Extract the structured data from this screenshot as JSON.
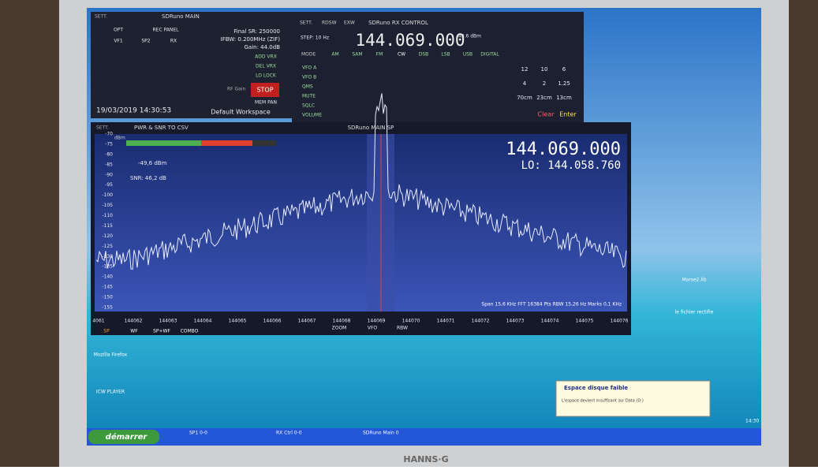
{
  "main_window": {
    "title": "SDRuno MAIN",
    "sett": "SETT.",
    "buttons_top": [
      "OPT",
      "REC PANEL",
      "VF1",
      "SP2",
      "RX"
    ],
    "final_sr": "Final SR: 250000",
    "ifbw": "IFBW: 0.200MHz (ZIF)",
    "gain": "Gain: 44.0dB",
    "vrx": [
      "ADD VRX",
      "DEL VRX",
      "LO LOCK"
    ],
    "stop": "STOP",
    "mem_pan": "MEM PAN",
    "rf_gain": "RF Gain",
    "date": "19/03/2019 14:30:53",
    "workspace": "Default Workspace"
  },
  "rx_control": {
    "title": "SDRuno RX CONTROL",
    "tabs": [
      "SETT.",
      "RDSW",
      "EXW"
    ],
    "step": "STEP: 10 Hz",
    "frequency": "144.069.000",
    "level": "-49.6 dBm",
    "mode_label": "MODE",
    "modes": [
      "AM",
      "SAM",
      "FM",
      "CW",
      "DSB",
      "LSB",
      "USB",
      "DIGITAL"
    ],
    "left_buttons": [
      "VFO A",
      "VFO B",
      "QMS",
      "MUTE",
      "SQLC",
      "VOLUME"
    ],
    "keypad": [
      "12",
      "10",
      "6",
      "4",
      "2",
      "1.25",
      "70cm",
      "23cm",
      "13cm"
    ],
    "clear": "Clear",
    "enter": "Enter"
  },
  "main_panel": {
    "sett": "SETT.",
    "tab": "PWR & SNR TO CSV",
    "title": "SDRuno MAIN SP",
    "frequency": "144.069.000",
    "lo": "LO: 144.058.760",
    "dbm_unit": "dBm",
    "level": "-49,6 dBm",
    "snr": "SNR: 46,2 dB",
    "y_labels": [
      "-70",
      "-75",
      "-80",
      "-85",
      "-90",
      "-95",
      "-100",
      "-105",
      "-110",
      "-115",
      "-120",
      "-125",
      "-130",
      "-135",
      "-140",
      "-145",
      "-150",
      "-155"
    ],
    "x_labels": [
      "4061",
      "144062",
      "144063",
      "144064",
      "144065",
      "144066",
      "144067",
      "144068",
      "144069",
      "144070",
      "144071",
      "144072",
      "144073",
      "144074",
      "144075",
      "144076"
    ],
    "status": "Span 15,6 KHz   FFT 16384 Pts   RBW 15,26 Hz   Marks 0,1 KHz",
    "zoom": "ZOOM",
    "vfo": "VFO",
    "rbw": "RBW",
    "tabs": [
      "SP",
      "WF",
      "SP+WF",
      "COMBO"
    ]
  },
  "desktop": {
    "icons": [
      "Mozilla Firefox",
      "ICW PLAYER",
      "Morse2.lib",
      "le fichier rectifie"
    ],
    "notification_title": "Espace disque faible",
    "notification_text": "L'espace devient insuffisant sur Data (D:)",
    "start": "démarrer",
    "taskbar": [
      "SP1 0-0",
      "RX Ctrl 0-0",
      "SDRuno Main 0"
    ],
    "clock": "14:30"
  },
  "monitor_brand": "HANNS·G"
}
